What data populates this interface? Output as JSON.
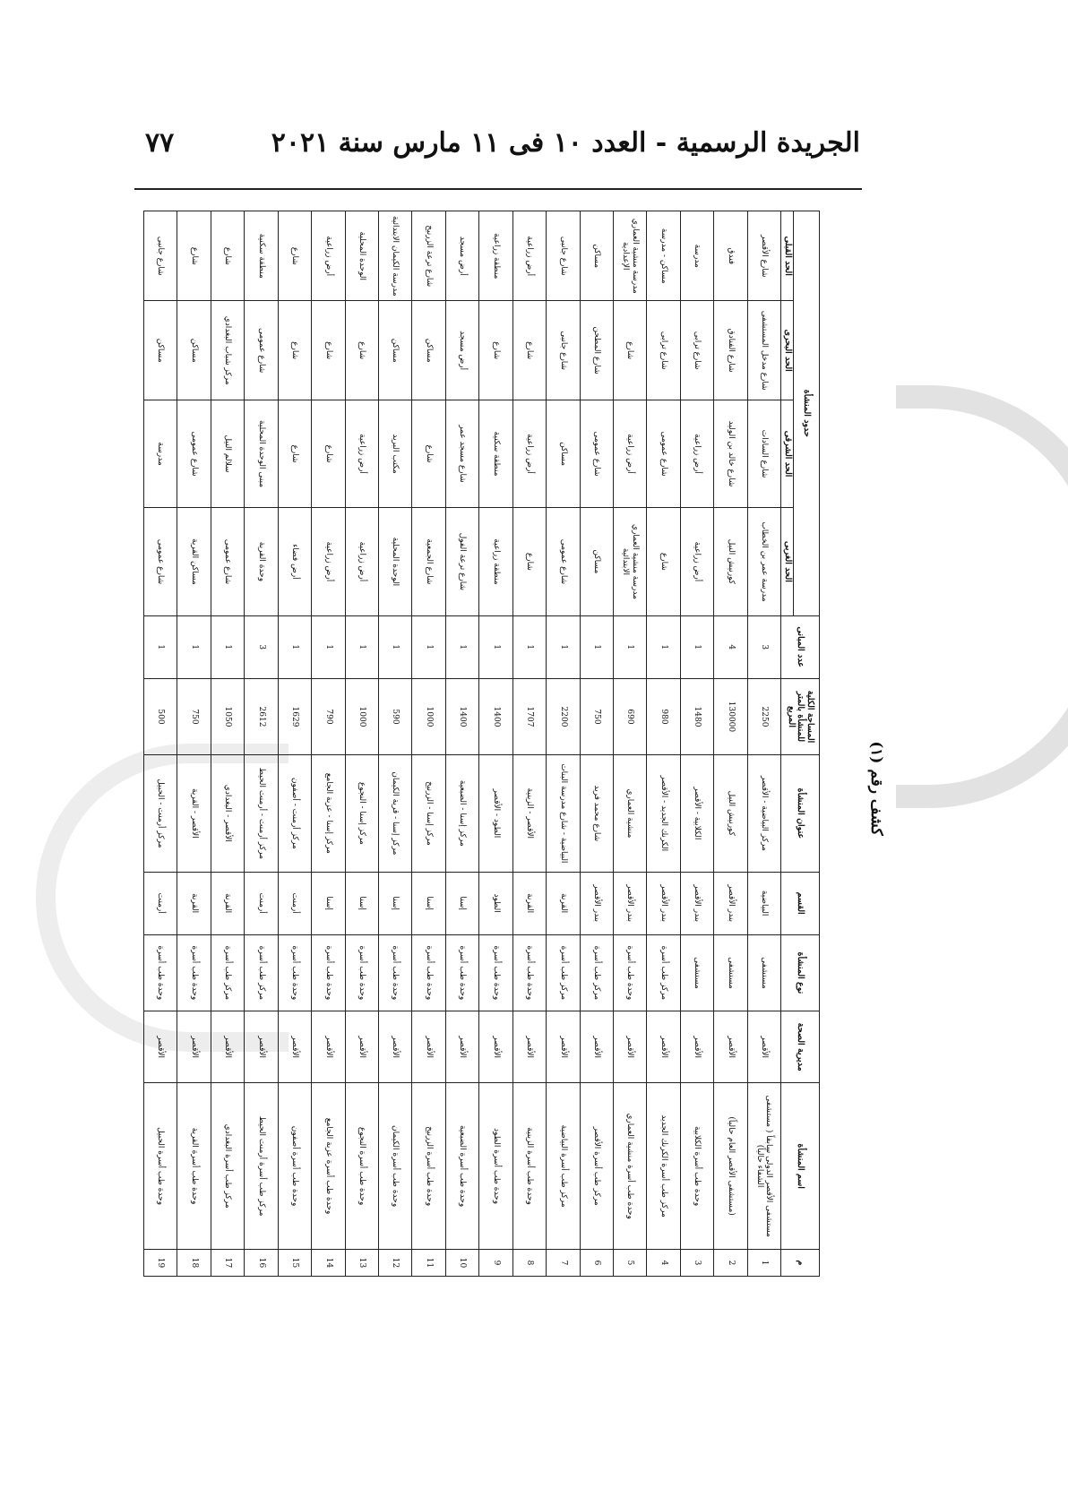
{
  "header": {
    "title": "الجريدة الرسمية - العدد ١٠ فى ١١ مارس سنة ٢٠٢١",
    "page_number": "٧٧"
  },
  "sheet_title": "كشف رقم (١)",
  "table": {
    "columns": {
      "index": "م",
      "name": "اسم المنشأة",
      "directorate": "مديرية الصحة",
      "type": "نوع المنشأة",
      "district": "القسم",
      "address": "عنوان المنشأة",
      "area": "المساحة الكلية للمنشأة بالمتر المربع",
      "buildings": "عدد المبانى",
      "boundaries": "حدود المنشأة",
      "west": "الحد الغربى",
      "east": "الحد الشرقى",
      "north": "الحد البحرى",
      "south": "الحد القبلى"
    },
    "rows": [
      {
        "index": "1",
        "name": "مستشفى الأقصر الدولى سابقاً ( مستشفى الشفاء حالياً)",
        "directorate": "الأقصر",
        "type": "مستشفى",
        "district": "البياضية",
        "address": "مركز البياضية - الأقصر",
        "area": "2250",
        "buildings": "3",
        "west": "مدرسة عمر بن الخطاب",
        "east": "شارع السادات",
        "north": "شارع مدخل المستشفى",
        "south": "شارع الأقصر"
      },
      {
        "index": "2",
        "name": "(مستشفى الأقصر العام حالياً)",
        "directorate": "الأقصر",
        "type": "مستشفى",
        "district": "بندر الأقصر",
        "address": "كورنيش النيل",
        "area": "130000",
        "buildings": "4",
        "west": "كورنيش النيل",
        "east": "شارع خالد بن الوليد",
        "north": "شارع الفنادق",
        "south": "فندق"
      },
      {
        "index": "3",
        "name": "وحدة طب أسرة الكلابية",
        "directorate": "الأقصر",
        "type": "مستشفى",
        "district": "بندر الأقصر",
        "address": "الكلابية - الأقصر",
        "area": "1480",
        "buildings": "1",
        "west": "أرض زراعية",
        "east": "أرض زراعية",
        "north": "شارع ترابى",
        "south": "مدرسة"
      },
      {
        "index": "4",
        "name": "مركز طب أسرة الكرنك الجديد",
        "directorate": "الأقصر",
        "type": "مركز طب أسرة",
        "district": "بندر الأقصر",
        "address": "الكرنك الجديد - الأقصر",
        "area": "980",
        "buildings": "1",
        "west": "شارع",
        "east": "شارع عمومى",
        "north": "شارع ترابى",
        "south": "مساكن - مدرسة"
      },
      {
        "index": "5",
        "name": "وحدة طب أسرة منشية العماري",
        "directorate": "الأقصر",
        "type": "وحدة طب أسرة",
        "district": "بندر الأقصر",
        "address": "منشية العماري",
        "area": "690",
        "buildings": "1",
        "west": "مدرسة منشية العماري الابتدائية",
        "east": "أرض زراعية",
        "north": "شارع",
        "south": "مدرسة منشية العماري الإعدادية"
      },
      {
        "index": "6",
        "name": "مركز طب أسرة الأقصر",
        "directorate": "الأقصر",
        "type": "مركز طب أسرة",
        "district": "بندر الأقصر",
        "address": "شارع محمد فريد",
        "area": "750",
        "buildings": "1",
        "west": "مساكن",
        "east": "شارع عمومى",
        "north": "شارع المطحن",
        "south": "مساكن"
      },
      {
        "index": "7",
        "name": "مركز طب أسرة البياضية",
        "directorate": "الأقصر",
        "type": "مركز طب أسرة",
        "district": "القرنة",
        "address": "البياضية - شارع مدرسة البنات",
        "area": "2200",
        "buildings": "1",
        "west": "شارع عمومى",
        "east": "مساكن",
        "north": "شارع جانبى",
        "south": "شارع جانبى"
      },
      {
        "index": "8",
        "name": "وحدة طب أسرة الزينية",
        "directorate": "الأقصر",
        "type": "وحدة طب أسرة",
        "district": "القرنة",
        "address": "الأقصر - الزينية",
        "area": "1707",
        "buildings": "1",
        "west": "شارع",
        "east": "أرض زراعية",
        "north": "شارع",
        "south": "أرض زراعية"
      },
      {
        "index": "9",
        "name": "وحدة طب أسرة الطود",
        "directorate": "الأقصر",
        "type": "وحدة طب أسرة",
        "district": "الطود",
        "address": "الطود - الأقصر",
        "area": "1400",
        "buildings": "1",
        "west": "منطقة زراعية",
        "east": "منطقة سكنية",
        "north": "شارع",
        "south": "منطقة زراعية"
      },
      {
        "index": "10",
        "name": "وحدة طب أسرة الضبعية",
        "directorate": "الأقصر",
        "type": "وحدة طب أسرة",
        "district": "إسنا",
        "address": "مركز إسنا - الضبعية",
        "area": "1400",
        "buildings": "1",
        "west": "شارع ترعة الفول",
        "east": "شارع مسجد عمر",
        "north": "أرض مسجد",
        "south": "أرض مسجد"
      },
      {
        "index": "11",
        "name": "وحدة طب أسرة الزرنيخ",
        "directorate": "الأقصر",
        "type": "وحدة طب أسرة",
        "district": "إسنا",
        "address": "مركز إسنا - الزرنيخ",
        "area": "1000",
        "buildings": "1",
        "west": "شارع الجمعية",
        "east": "شارع",
        "south": "شارع ترعة الزرنيخ",
        "north": "مساكن"
      },
      {
        "index": "12",
        "name": "وحدة طب أسرة الكيمان",
        "directorate": "الأقصر",
        "type": "وحدة طب أسرة",
        "district": "إسنا",
        "address": "مركز إسنا - قرية الكيمان",
        "area": "590",
        "buildings": "1",
        "west": "الوحدة المحلية",
        "east": "مكتب البريد",
        "north": "مساكن",
        "south": "مدرسة الكيمان الابتدائية"
      },
      {
        "index": "13",
        "name": "وحدة طب أسرة النجوع",
        "directorate": "الأقصر",
        "type": "وحدة طب أسرة",
        "district": "إسنا",
        "address": "مركز إسنا - النجوع",
        "area": "1000",
        "buildings": "1",
        "west": "أرض زراعية",
        "east": "أرض زراعية",
        "north": "شارع",
        "south": "الوحدة المحلية"
      },
      {
        "index": "14",
        "name": "وحدة طب أسرة عزبة الجامع",
        "directorate": "الأقصر",
        "type": "وحدة طب أسرة",
        "district": "إسنا",
        "address": "مركز إسنا - عزبة الجامع",
        "area": "790",
        "buildings": "1",
        "west": "أرض زراعية",
        "east": "شارع",
        "north": "شارع",
        "south": "أرض زراعية"
      },
      {
        "index": "15",
        "name": "وحدة طب أسرة أصفون",
        "directorate": "الأقصر",
        "type": "وحدة طب أسرة",
        "district": "أرمنت",
        "address": "مركز أرمنت - أصفون",
        "area": "1629",
        "buildings": "1",
        "west": "أرض فضاء",
        "east": "شارع",
        "north": "شارع",
        "south": "شارع"
      },
      {
        "index": "16",
        "name": "مركز طب أسرة أرمنت الحيط",
        "directorate": "الأقصر",
        "type": "مركز طب أسرة",
        "district": "أرمنت",
        "address": "مركز أرمنت - أرمنت الحيط",
        "area": "2612",
        "buildings": "3",
        "west": "وحدة القرية",
        "east": "مبنى الوحدة المحلية",
        "north": "شارع عمومى",
        "south": "منطقة سكنية"
      },
      {
        "index": "17",
        "name": "مركز طب أسرة البغدادي",
        "directorate": "الأقصر",
        "type": "مركز طب أسرة",
        "district": "القرنة",
        "address": "الأقصر - البغدادي",
        "area": "1050",
        "buildings": "1",
        "west": "شارع عمومى",
        "east": "سلالم النيل",
        "north": "مركز شباب البغدادي",
        "south": "شارع"
      },
      {
        "index": "18",
        "name": "وحدة طب أسرة القرية",
        "directorate": "الأقصر",
        "type": "وحدة طب أسرة",
        "district": "القرنة",
        "address": "الأقصر - القرية",
        "area": "750",
        "buildings": "1",
        "west": "مساكن القرية",
        "east": "شارع عمومى",
        "north": "مساكن",
        "south": "شارع"
      },
      {
        "index": "19",
        "name": "وحدة طب أسرة الحبيل",
        "directorate": "الأقصر",
        "type": "وحدة طب أسرة",
        "district": "أرمنت",
        "address": "مركز أرمنت - الحبيل",
        "area": "500",
        "buildings": "1",
        "west": "شارع عمومى",
        "east": "مدرسة",
        "north": "مساكن",
        "south": "شارع جانبى"
      }
    ]
  }
}
